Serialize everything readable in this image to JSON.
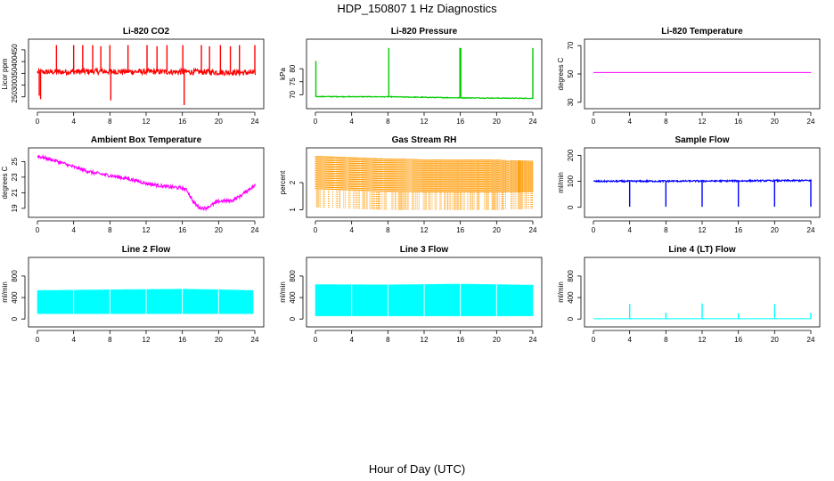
{
  "figure": {
    "title": "HDP_150807  1 Hz Diagnostics",
    "xlabel": "Hour of Day (UTC)"
  },
  "chart_data": [
    {
      "type": "line",
      "title": "Li-820 CO2",
      "ylabel": "Licor ppm",
      "color": "#ff0000",
      "xlim": [
        0,
        24
      ],
      "ylim": [
        215,
        480
      ],
      "xticks": [
        0,
        4,
        8,
        12,
        16,
        20,
        24
      ],
      "yticks": [
        250,
        300,
        350,
        400,
        450
      ],
      "baseline": [
        [
          0,
          355
        ],
        [
          6,
          358
        ],
        [
          12,
          357
        ],
        [
          18,
          356
        ],
        [
          24,
          352
        ]
      ],
      "noise": 12,
      "spikes": [
        [
          0.2,
          255
        ],
        [
          0.35,
          240
        ],
        [
          2.1,
          470
        ],
        [
          4.0,
          470
        ],
        [
          5.0,
          470
        ],
        [
          6.1,
          470
        ],
        [
          7.0,
          465
        ],
        [
          8.0,
          470
        ],
        [
          8.1,
          235
        ],
        [
          10.0,
          470
        ],
        [
          12.1,
          470
        ],
        [
          13.2,
          465
        ],
        [
          14.3,
          470
        ],
        [
          16.05,
          470
        ],
        [
          16.2,
          215
        ],
        [
          18.1,
          470
        ],
        [
          19.0,
          465
        ],
        [
          20.2,
          470
        ],
        [
          21.3,
          465
        ],
        [
          22.3,
          470
        ],
        [
          24.0,
          470
        ]
      ]
    },
    {
      "type": "line",
      "title": "Li-820 Pressure",
      "ylabel": "kPa",
      "color": "#00cc00",
      "xlim": [
        0,
        24
      ],
      "ylim": [
        66,
        90
      ],
      "xticks": [
        0,
        4,
        8,
        12,
        16,
        20,
        24
      ],
      "yticks": [
        70,
        75,
        80
      ],
      "baseline": [
        [
          0,
          69.3
        ],
        [
          8,
          69.2
        ],
        [
          12,
          69.0
        ],
        [
          16,
          68.8
        ],
        [
          24,
          68.6
        ]
      ],
      "noise": 0.15,
      "spikes": [
        [
          0.05,
          83
        ],
        [
          8.1,
          88
        ],
        [
          15.95,
          88
        ],
        [
          16.05,
          88
        ],
        [
          24.0,
          88
        ]
      ]
    },
    {
      "type": "line",
      "title": "Li-820 Temperature",
      "ylabel": "degrees C",
      "color": "#ff00ff",
      "xlim": [
        0,
        24
      ],
      "ylim": [
        28,
        72
      ],
      "xticks": [
        0,
        4,
        8,
        12,
        16,
        20,
        24
      ],
      "yticks": [
        30,
        50,
        70
      ],
      "baseline": [
        [
          0,
          51
        ],
        [
          24,
          51
        ]
      ],
      "noise": 0,
      "spikes": []
    },
    {
      "type": "line",
      "title": "Ambient Box Temperature",
      "ylabel": "degrees C",
      "color": "#ff00ff",
      "xlim": [
        0,
        24
      ],
      "ylim": [
        18.3,
        26.3
      ],
      "xticks": [
        0,
        4,
        8,
        12,
        16,
        20,
        24
      ],
      "yticks": [
        19,
        21,
        23,
        25
      ],
      "baseline": [
        [
          0,
          25.7
        ],
        [
          2,
          25.1
        ],
        [
          4,
          24.3
        ],
        [
          6,
          23.6
        ],
        [
          8,
          23.2
        ],
        [
          10,
          22.8
        ],
        [
          12,
          22.2
        ],
        [
          14,
          21.8
        ],
        [
          16,
          21.6
        ],
        [
          16.5,
          21.3
        ],
        [
          17.2,
          19.8
        ],
        [
          17.8,
          19.1
        ],
        [
          18.5,
          19.0
        ],
        [
          19.5,
          19.6
        ],
        [
          20,
          19.9
        ],
        [
          21.5,
          20.0
        ],
        [
          22.5,
          20.7
        ],
        [
          23.5,
          21.6
        ],
        [
          24,
          21.9
        ]
      ],
      "noise": 0.22,
      "spikes": []
    },
    {
      "type": "scatter",
      "title": "Gas Stream RH",
      "ylabel": "percent",
      "color": "#ff9900",
      "xlim": [
        0,
        24
      ],
      "ylim": [
        0.85,
        3.15
      ],
      "xticks": [
        0,
        4,
        8,
        12,
        16,
        20,
        24
      ],
      "yticks": [
        1.0,
        2.0
      ],
      "band": [
        [
          0,
          1.1,
          3.0
        ],
        [
          4,
          1.05,
          2.95
        ],
        [
          8,
          1.0,
          2.9
        ],
        [
          12,
          1.0,
          2.85
        ],
        [
          16,
          1.0,
          2.85
        ],
        [
          20,
          1.0,
          2.85
        ],
        [
          24,
          1.05,
          2.8
        ]
      ],
      "spikes": []
    },
    {
      "type": "line",
      "title": "Sample Flow",
      "ylabel": "ml/min",
      "color": "#0000ff",
      "xlim": [
        0,
        24
      ],
      "ylim": [
        -25,
        215
      ],
      "xticks": [
        0,
        4,
        8,
        12,
        16,
        20,
        24
      ],
      "yticks": [
        0,
        100,
        200
      ],
      "baseline": [
        [
          0,
          100
        ],
        [
          12,
          101
        ],
        [
          24,
          103
        ]
      ],
      "noise": 3,
      "spikes": [
        [
          4.0,
          2
        ],
        [
          8.0,
          2
        ],
        [
          12.0,
          2
        ],
        [
          16.0,
          2
        ],
        [
          20.0,
          2
        ],
        [
          24.0,
          2
        ]
      ]
    },
    {
      "type": "area",
      "title": "Line 2 Flow",
      "ylabel": "ml/min",
      "color": "#00ffff",
      "xlim": [
        0,
        24
      ],
      "ylim": [
        -80,
        1080
      ],
      "xticks": [
        0,
        4,
        8,
        12,
        16,
        20,
        24
      ],
      "yticks": [
        0,
        400,
        800
      ],
      "upper": [
        [
          0,
          530
        ],
        [
          6,
          540
        ],
        [
          12,
          550
        ],
        [
          16,
          555
        ],
        [
          20,
          545
        ],
        [
          23.8,
          530
        ]
      ],
      "lower": [
        [
          0,
          100
        ],
        [
          24,
          100
        ]
      ],
      "xend": 23.8,
      "gaps": [
        4,
        8,
        12,
        16,
        20
      ],
      "spikes": []
    },
    {
      "type": "area",
      "title": "Line 3 Flow",
      "ylabel": "ml/min",
      "color": "#00ffff",
      "xlim": [
        0,
        24
      ],
      "ylim": [
        -80,
        1080
      ],
      "xticks": [
        0,
        4,
        8,
        12,
        16,
        20,
        24
      ],
      "yticks": [
        0,
        400,
        800
      ],
      "upper": [
        [
          0,
          640
        ],
        [
          8,
          635
        ],
        [
          16,
          650
        ],
        [
          20,
          640
        ],
        [
          24,
          630
        ]
      ],
      "lower": [
        [
          0,
          60
        ],
        [
          24,
          60
        ]
      ],
      "xend": 24,
      "gaps": [
        4,
        8,
        12,
        16,
        20
      ],
      "spikes": []
    },
    {
      "type": "line",
      "title": "Line 4 (LT) Flow",
      "ylabel": "ml/min",
      "color": "#00ffff",
      "xlim": [
        0,
        24
      ],
      "ylim": [
        -80,
        1080
      ],
      "xticks": [
        0,
        4,
        8,
        12,
        16,
        20,
        24
      ],
      "yticks": [
        0,
        400,
        800
      ],
      "baseline": [
        [
          0,
          5
        ],
        [
          24,
          5
        ]
      ],
      "noise": 0,
      "spikes": [
        [
          4.0,
          280
        ],
        [
          8.0,
          120
        ],
        [
          12.0,
          290
        ],
        [
          16.0,
          110
        ],
        [
          20.0,
          280
        ],
        [
          24.0,
          120
        ]
      ]
    }
  ]
}
